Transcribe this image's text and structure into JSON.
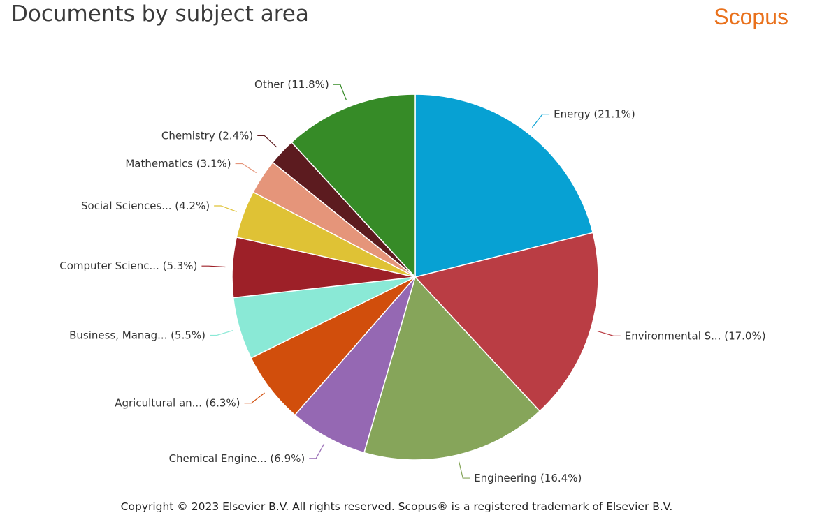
{
  "header": {
    "title": "Documents by subject area",
    "brand": "Scopus"
  },
  "footer": {
    "copyright": "Copyright © 2023 Elsevier B.V. All rights reserved. Scopus® is a registered trademark of Elsevier B.V."
  },
  "chart_data": {
    "type": "pie",
    "title": "Documents by subject area",
    "slices": [
      {
        "label": "Energy (21.1%)",
        "value": 21.1,
        "color": "#07a1d3"
      },
      {
        "label": "Environmental S... (17.0%)",
        "value": 17.0,
        "color": "#ba3d44"
      },
      {
        "label": "Engineering (16.4%)",
        "value": 16.4,
        "color": "#86a55a"
      },
      {
        "label": "Chemical Engine... (6.9%)",
        "value": 6.9,
        "color": "#9568b3"
      },
      {
        "label": "Agricultural an... (6.3%)",
        "value": 6.3,
        "color": "#d14e0c"
      },
      {
        "label": "Business, Manag... (5.5%)",
        "value": 5.5,
        "color": "#8ae9d6"
      },
      {
        "label": "Computer Scienc... (5.3%)",
        "value": 5.3,
        "color": "#9d2028"
      },
      {
        "label": "Social Sciences... (4.2%)",
        "value": 4.2,
        "color": "#dfc235"
      },
      {
        "label": "Mathematics (3.1%)",
        "value": 3.1,
        "color": "#e5957a"
      },
      {
        "label": "Chemistry (2.4%)",
        "value": 2.4,
        "color": "#5c1b1f"
      },
      {
        "label": "Other (11.8%)",
        "value": 11.8,
        "color": "#368b27"
      }
    ]
  }
}
